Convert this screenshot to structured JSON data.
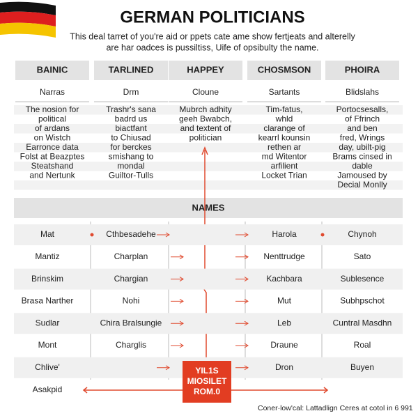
{
  "header": {
    "title": "GERMAN POLITICIANS",
    "subtitle": [
      "This deal tarret of you're aid or ppets cate ame show fertjeats and alterelly",
      "are har oadces is pussiltiss, Uife of opsibulty the name."
    ]
  },
  "table": {
    "columns": [
      "BAINIC",
      "TARLINED",
      "HAPPEY",
      "CHOSMSON",
      "PHOIRA"
    ],
    "subheads": [
      "Narras",
      "Drm",
      "Cloune",
      "Sartants",
      "Blidslahs"
    ],
    "descriptions": [
      [
        "The nosion for",
        "political",
        "of ardans",
        "on Wistch",
        "Earronce data",
        "Folst at Beazptes",
        "Steatshand",
        "and Nertunk"
      ],
      [
        "Trashr's sana",
        "badrd us",
        "biactfant",
        "to Chiusad",
        "for berckes",
        "smishang to",
        "mondal",
        "Guiltor-Tulls"
      ],
      [
        "Mubrch adhity",
        "geeh Bwabch,",
        "and textent of",
        "politician"
      ],
      [
        "Tim-fatus,",
        "whld",
        "clarange of",
        "kearrl kounsin",
        "rethen ar",
        "md Witentor",
        "arfilient",
        "Locket Trian"
      ],
      [
        "Portocsesalls,",
        "of Ffrinch",
        "and ben",
        "fred, Wrings",
        "day, ubilt-pig",
        "Brams cinsed in",
        "dable",
        "Jamoused by",
        "Decial Monlly"
      ]
    ],
    "section": "NAMES",
    "rows": [
      [
        "Mat",
        "Cthbesadehe",
        null,
        "Harola",
        "Chynoh"
      ],
      [
        "Mantiz",
        "Charplan",
        null,
        "Nenttrudge",
        "Sato"
      ],
      [
        "Brinskim",
        "Chargian",
        null,
        "Kachbara",
        "Sublesence"
      ],
      [
        "Brasa Narther",
        "Nohi",
        null,
        "Mut",
        "Subhpschot"
      ],
      [
        "Sudlar",
        "Chira Bralsungie",
        null,
        "Leb",
        "Cuntral Masdhn"
      ],
      [
        "Mont",
        "Charglis",
        null,
        "Draune",
        "Roal"
      ],
      [
        "Chlive'",
        null,
        null,
        "Dron",
        "Buyen"
      ],
      [
        "Asakpid"
      ]
    ]
  },
  "badge": [
    "YIL1S",
    "MIOSILET",
    "ROM.0"
  ],
  "footer": "Coner·low'cal: Lattadlign Ceres at cotol in 6 991"
}
